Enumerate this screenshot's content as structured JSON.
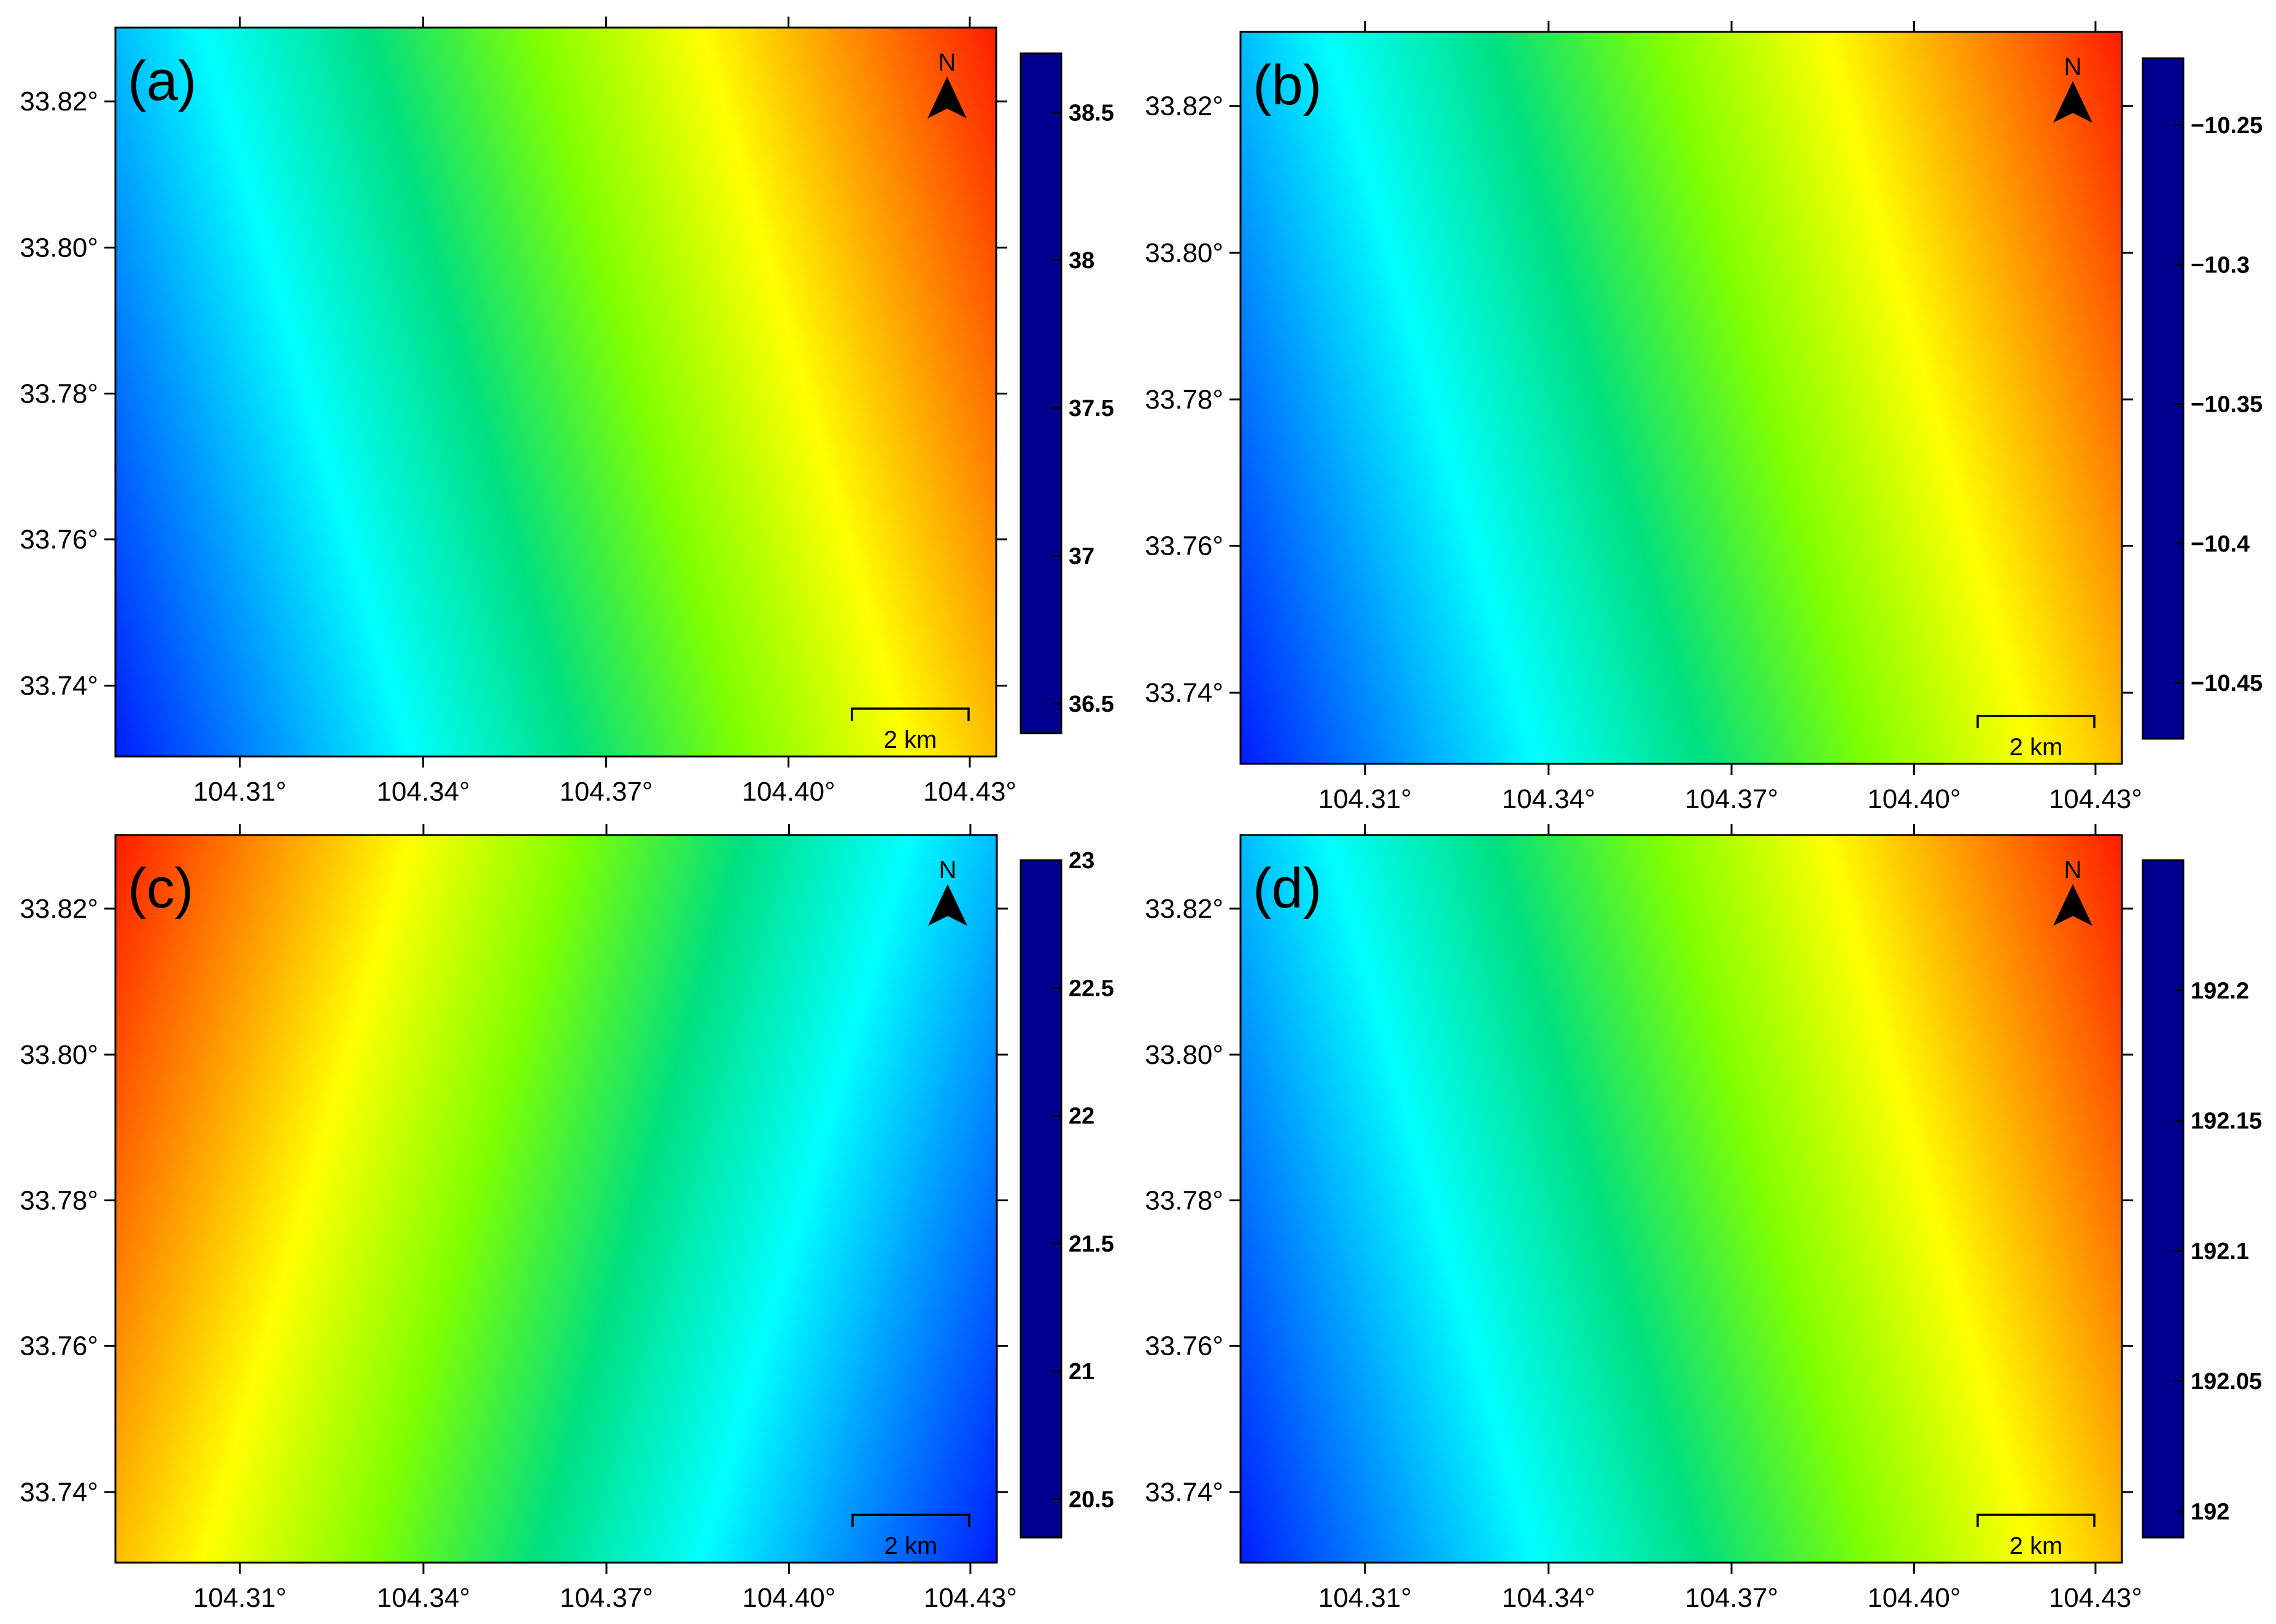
{
  "figure": {
    "panels": [
      {
        "label": "(a)",
        "orientation": "left-low",
        "north_label": "N",
        "scale_bar_label": "2 km",
        "x_ticks": [
          "104.31°",
          "104.34°",
          "104.37°",
          "104.40°",
          "104.43°"
        ],
        "y_ticks": [
          "33.82°",
          "33.80°",
          "33.78°",
          "33.76°",
          "33.74°"
        ],
        "colorbar": {
          "ticks": [
            {
              "label": "38.5",
              "value": 38.5
            },
            {
              "label": "38",
              "value": 38.0
            },
            {
              "label": "37.5",
              "value": 37.5
            },
            {
              "label": "37",
              "value": 37.0
            },
            {
              "label": "36.5",
              "value": 36.5
            }
          ],
          "min": 36.4,
          "max": 38.7
        }
      },
      {
        "label": "(b)",
        "orientation": "left-low",
        "north_label": "N",
        "scale_bar_label": "2 km",
        "x_ticks": [
          "104.31°",
          "104.34°",
          "104.37°",
          "104.40°",
          "104.43°"
        ],
        "y_ticks": [
          "33.82°",
          "33.80°",
          "33.78°",
          "33.76°",
          "33.74°"
        ],
        "colorbar": {
          "ticks": [
            {
              "label": "−10.25",
              "value": -10.25
            },
            {
              "label": "−10.3",
              "value": -10.3
            },
            {
              "label": "−10.35",
              "value": -10.35
            },
            {
              "label": "−10.4",
              "value": -10.4
            },
            {
              "label": "−10.45",
              "value": -10.45
            }
          ],
          "min": -10.47,
          "max": -10.226
        }
      },
      {
        "label": "(c)",
        "orientation": "left-high",
        "north_label": "N",
        "scale_bar_label": "2 km",
        "x_ticks": [
          "104.31°",
          "104.34°",
          "104.37°",
          "104.40°",
          "104.43°"
        ],
        "y_ticks": [
          "33.82°",
          "33.80°",
          "33.78°",
          "33.76°",
          "33.74°"
        ],
        "colorbar": {
          "ticks": [
            {
              "label": "23",
              "value": 23.0
            },
            {
              "label": "22.5",
              "value": 22.5
            },
            {
              "label": "22",
              "value": 22.0
            },
            {
              "label": "21.5",
              "value": 21.5
            },
            {
              "label": "21",
              "value": 21.0
            },
            {
              "label": "20.5",
              "value": 20.5
            }
          ],
          "min": 20.35,
          "max": 23.0
        }
      },
      {
        "label": "(d)",
        "orientation": "left-low",
        "north_label": "N",
        "scale_bar_label": "2 km",
        "x_ticks": [
          "104.31°",
          "104.34°",
          "104.37°",
          "104.40°",
          "104.43°"
        ],
        "y_ticks": [
          "33.82°",
          "33.80°",
          "33.78°",
          "33.76°",
          "33.74°"
        ],
        "colorbar": {
          "ticks": [
            {
              "label": "192.2",
              "value": 192.2
            },
            {
              "label": "192.15",
              "value": 192.15
            },
            {
              "label": "192.1",
              "value": 192.1
            },
            {
              "label": "192.05",
              "value": 192.05
            },
            {
              "label": "192",
              "value": 192.0
            }
          ],
          "min": 191.99,
          "max": 192.25
        }
      }
    ]
  },
  "colors": {
    "jet": [
      "#00008f",
      "#0000ff",
      "#0080ff",
      "#00ffff",
      "#00e080",
      "#80ff00",
      "#ffff00",
      "#ff8000",
      "#ff0000",
      "#800000"
    ]
  }
}
